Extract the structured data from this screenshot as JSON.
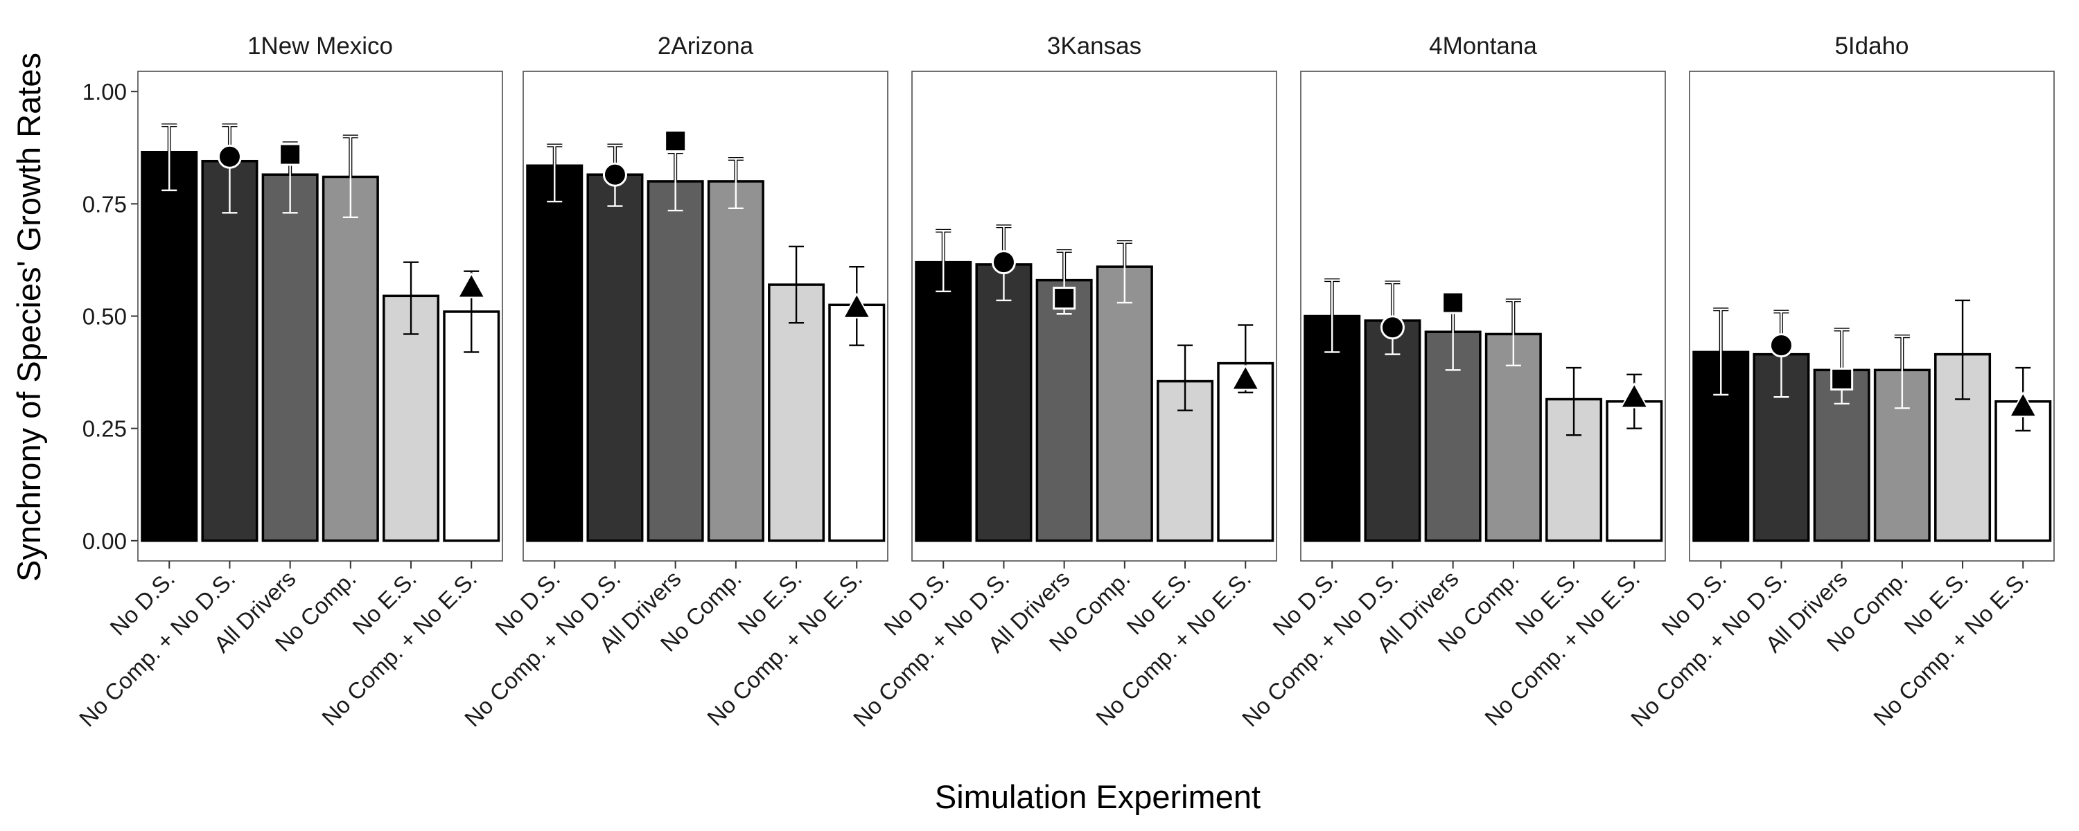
{
  "chart_data": {
    "type": "bar",
    "layout": "faceted",
    "xlabel": "Simulation Experiment",
    "ylabel": "Synchrony of Species' Growth Rates",
    "ylim": [
      -0.045,
      1.045
    ],
    "yticks": [
      0.0,
      0.25,
      0.5,
      0.75,
      1.0
    ],
    "ytick_labels": [
      "0.00",
      "0.25",
      "0.50",
      "0.75",
      "1.00"
    ],
    "grid": false,
    "legend": "none",
    "categories": [
      "No D.S.",
      "No Comp. + No D.S.",
      "All Drivers",
      "No Comp.",
      "No E.S.",
      "No Comp. + No E.S."
    ],
    "bar_colors": [
      "#000000",
      "#333333",
      "#5f5f5f",
      "#929292",
      "#d3d3d3",
      "#ffffff"
    ],
    "panels": [
      {
        "title": "1New Mexico",
        "values": [
          0.865,
          0.845,
          0.815,
          0.81,
          0.545,
          0.51
        ],
        "err_low": [
          0.78,
          0.73,
          0.73,
          0.72,
          0.46,
          0.42
        ],
        "err_high": [
          0.925,
          0.925,
          0.885,
          0.9,
          0.62,
          0.6
        ],
        "observed": [
          {
            "category": "No Comp. + No D.S.",
            "value": 0.855,
            "shape": "circle"
          },
          {
            "category": "All Drivers",
            "value": 0.86,
            "shape": "square"
          },
          {
            "category": "No Comp. + No E.S.",
            "value": 0.565,
            "shape": "triangle"
          }
        ]
      },
      {
        "title": "2Arizona",
        "values": [
          0.835,
          0.815,
          0.8,
          0.8,
          0.57,
          0.525
        ],
        "err_low": [
          0.755,
          0.745,
          0.735,
          0.74,
          0.485,
          0.435
        ],
        "err_high": [
          0.88,
          0.88,
          0.865,
          0.85,
          0.655,
          0.61
        ],
        "observed": [
          {
            "category": "No Comp. + No D.S.",
            "value": 0.815,
            "shape": "circle"
          },
          {
            "category": "All Drivers",
            "value": 0.89,
            "shape": "square"
          },
          {
            "category": "No Comp. + No E.S.",
            "value": 0.52,
            "shape": "triangle"
          }
        ]
      },
      {
        "title": "3Kansas",
        "values": [
          0.62,
          0.615,
          0.58,
          0.61,
          0.355,
          0.395
        ],
        "err_low": [
          0.555,
          0.535,
          0.505,
          0.53,
          0.29,
          0.33
        ],
        "err_high": [
          0.69,
          0.7,
          0.645,
          0.665,
          0.435,
          0.48
        ],
        "observed": [
          {
            "category": "No Comp. + No D.S.",
            "value": 0.62,
            "shape": "circle"
          },
          {
            "category": "All Drivers",
            "value": 0.54,
            "shape": "square"
          },
          {
            "category": "No Comp. + No E.S.",
            "value": 0.36,
            "shape": "triangle"
          }
        ]
      },
      {
        "title": "4Montana",
        "values": [
          0.5,
          0.49,
          0.465,
          0.46,
          0.315,
          0.31
        ],
        "err_low": [
          0.42,
          0.415,
          0.38,
          0.39,
          0.235,
          0.25
        ],
        "err_high": [
          0.58,
          0.575,
          0.55,
          0.535,
          0.385,
          0.37
        ],
        "observed": [
          {
            "category": "No Comp. + No D.S.",
            "value": 0.475,
            "shape": "circle"
          },
          {
            "category": "All Drivers",
            "value": 0.53,
            "shape": "square"
          },
          {
            "category": "No Comp. + No E.S.",
            "value": 0.32,
            "shape": "triangle"
          }
        ]
      },
      {
        "title": "5Idaho",
        "values": [
          0.42,
          0.415,
          0.38,
          0.38,
          0.415,
          0.31
        ],
        "err_low": [
          0.325,
          0.32,
          0.305,
          0.295,
          0.315,
          0.245
        ],
        "err_high": [
          0.515,
          0.51,
          0.47,
          0.455,
          0.535,
          0.385
        ],
        "observed": [
          {
            "category": "No Comp. + No D.S.",
            "value": 0.435,
            "shape": "circle"
          },
          {
            "category": "All Drivers",
            "value": 0.36,
            "shape": "square"
          },
          {
            "category": "No Comp. + No E.S.",
            "value": 0.3,
            "shape": "triangle"
          }
        ]
      }
    ]
  }
}
